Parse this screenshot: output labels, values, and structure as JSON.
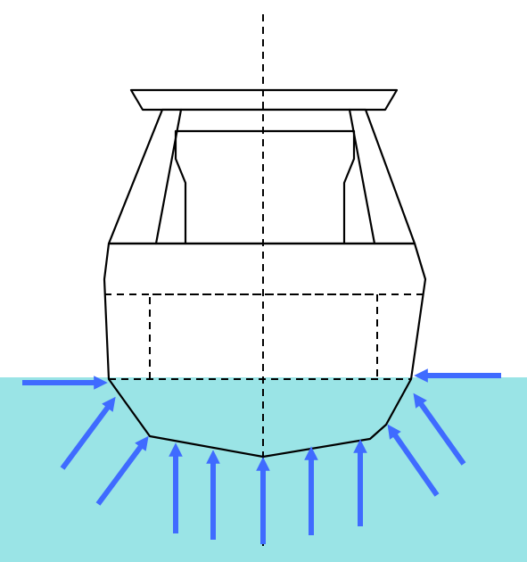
{
  "diagram": {
    "type": "boat-cross-section-hydrostatic-pressure",
    "colors": {
      "water": "#9ae4e6",
      "hull_outline": "#000000",
      "arrow": "#3f6bff",
      "background": "#ffffff"
    },
    "elements": {
      "centerline": "dashed-vertical-line",
      "waterline": "dashed-horizontal-line",
      "internal_compartment": "dashed-rectangle",
      "arrows": "pressure-arrows-pointing-toward-hull"
    }
  }
}
